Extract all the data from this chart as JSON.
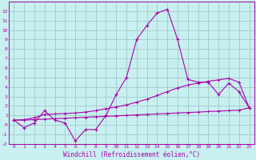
{
  "x": [
    0,
    1,
    2,
    3,
    4,
    5,
    6,
    7,
    8,
    9,
    10,
    11,
    12,
    13,
    14,
    15,
    16,
    17,
    18,
    19,
    20,
    21,
    22,
    23
  ],
  "y_curve": [
    0.5,
    -0.3,
    0.2,
    1.5,
    0.5,
    0.2,
    -1.7,
    -0.5,
    -0.5,
    1.0,
    3.2,
    5.0,
    9.0,
    10.5,
    11.8,
    12.2,
    9.0,
    4.8,
    4.5,
    4.5,
    3.2,
    4.4,
    3.5,
    1.8
  ],
  "y_line_flat": [
    0.5,
    0.5,
    0.55,
    0.6,
    0.65,
    0.7,
    0.75,
    0.8,
    0.85,
    0.9,
    0.95,
    1.0,
    1.05,
    1.1,
    1.15,
    1.2,
    1.25,
    1.3,
    1.35,
    1.4,
    1.45,
    1.5,
    1.55,
    1.8
  ],
  "y_line_rise": [
    0.5,
    0.55,
    0.75,
    1.1,
    1.15,
    1.2,
    1.25,
    1.35,
    1.5,
    1.7,
    1.9,
    2.1,
    2.4,
    2.7,
    3.1,
    3.5,
    3.9,
    4.2,
    4.4,
    4.6,
    4.75,
    4.9,
    4.5,
    1.8
  ],
  "bg_color": "#c8f0f0",
  "grid_color": "#a0c8c8",
  "line_color": "#aa00aa",
  "xlabel": "Windchill (Refroidissement éolien,°C)",
  "ylim": [
    -2,
    13
  ],
  "xlim": [
    -0.5,
    23.5
  ],
  "yticks": [
    -2,
    -1,
    0,
    1,
    2,
    3,
    4,
    5,
    6,
    7,
    8,
    9,
    10,
    11,
    12
  ],
  "xticks": [
    0,
    1,
    2,
    3,
    4,
    5,
    6,
    7,
    8,
    9,
    10,
    11,
    12,
    13,
    14,
    15,
    16,
    17,
    18,
    19,
    20,
    21,
    22,
    23
  ],
  "tick_fontsize": 4.5,
  "xlabel_fontsize": 5.5
}
